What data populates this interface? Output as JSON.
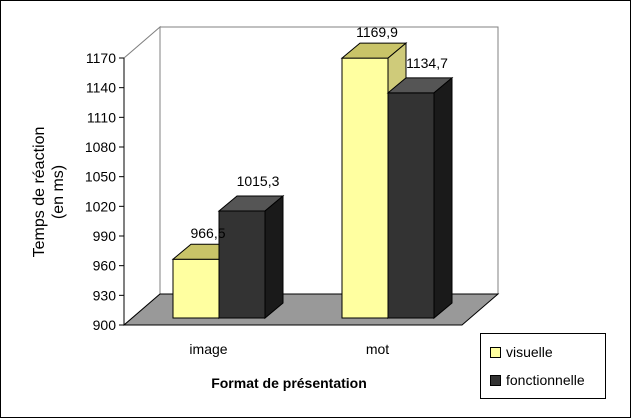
{
  "chart_data": {
    "type": "bar",
    "style": "3d-clustered-column",
    "categories": [
      "image",
      "mot"
    ],
    "series": [
      {
        "name": "visuelle",
        "color": "#ffffa0",
        "top_color": "#c9c468",
        "side_color": "#cfcb7a",
        "values": [
          966.5,
          1169.9
        ]
      },
      {
        "name": "fonctionnelle",
        "color": "#333333",
        "top_color": "#555555",
        "side_color": "#1a1a1a",
        "values": [
          1015.3,
          1134.7
        ]
      }
    ],
    "data_labels": [
      [
        "966,5",
        "1169,9"
      ],
      [
        "1015,3",
        "1134,7"
      ]
    ],
    "yticks": [
      900,
      930,
      960,
      990,
      1020,
      1050,
      1080,
      1110,
      1140,
      1170
    ],
    "ylim": [
      900,
      1170
    ],
    "xlabel": "Format de présentation",
    "ylabel_lines": [
      "Temps de réaction",
      "(en ms)"
    ],
    "floor_color": "#999999",
    "wall_color": "#ffffff",
    "grid": false,
    "legend_position": "bottom-right"
  }
}
